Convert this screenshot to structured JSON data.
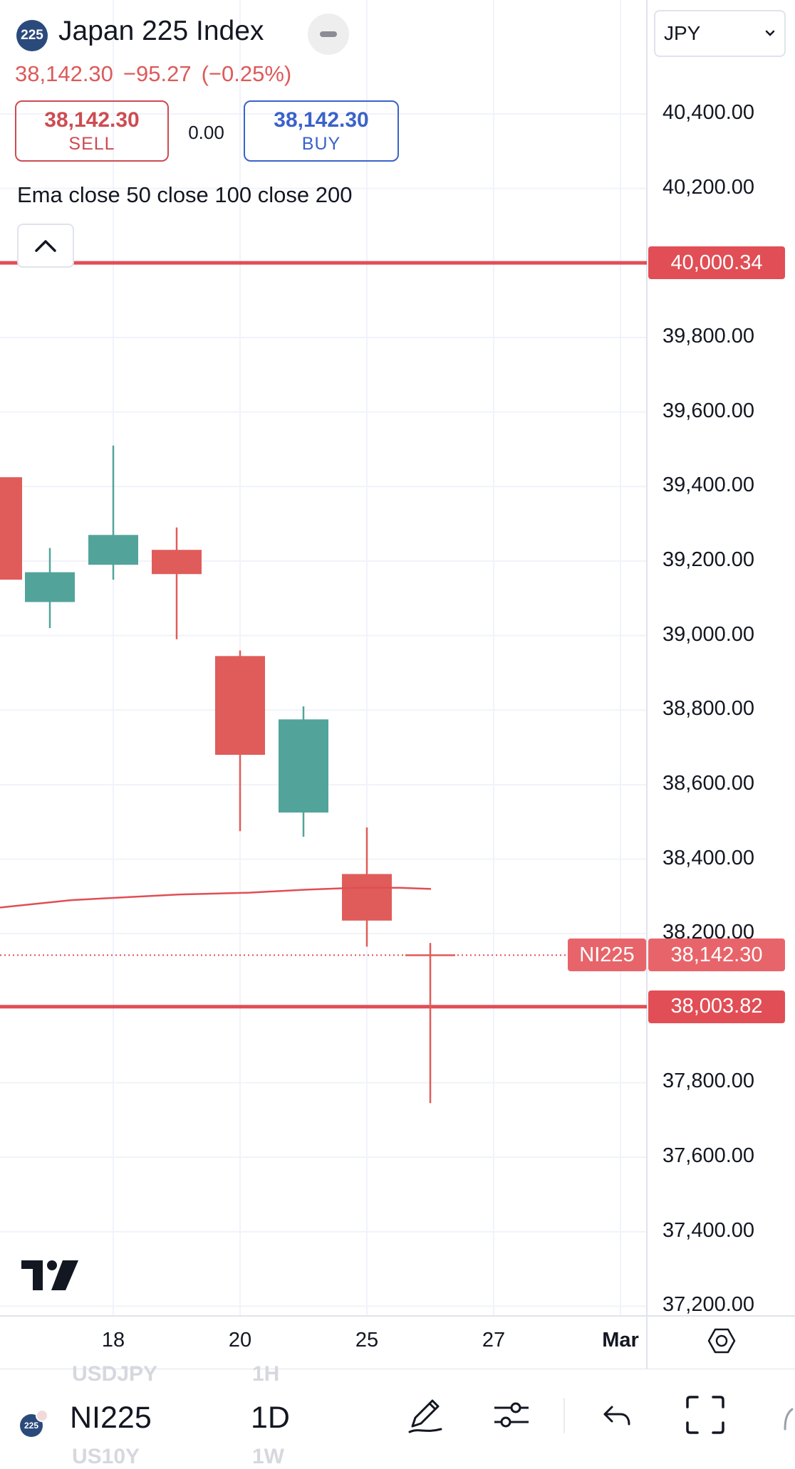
{
  "header": {
    "symbol_badge": "225",
    "title": "Japan 225 Index",
    "last_price": "38,142.30",
    "change": "−95.27",
    "change_percent": "(−0.25%)"
  },
  "trade": {
    "sell_price": "38,142.30",
    "sell_label": "SELL",
    "spread": "0.00",
    "buy_price": "38,142.30",
    "buy_label": "BUY"
  },
  "indicators_label": "Ema close 50 close 100 close 200",
  "currency": {
    "selected": "JPY"
  },
  "chart_data": {
    "type": "candlestick",
    "ylim": [
      37150,
      40690
    ],
    "y_ticks": [
      "40,400.00",
      "40,200.00",
      "39,800.00",
      "39,600.00",
      "39,400.00",
      "39,200.00",
      "39,000.00",
      "38,800.00",
      "38,600.00",
      "38,400.00",
      "38,200.00",
      "37,800.00",
      "37,600.00",
      "37,400.00",
      "37,200.00"
    ],
    "x_ticks": [
      "18",
      "20",
      "25",
      "27",
      "Mar"
    ],
    "candles": [
      {
        "open": 39425,
        "close": 39150,
        "high": 39425,
        "low": 39150,
        "dir": "down"
      },
      {
        "open": 39090,
        "close": 39170,
        "high": 39235,
        "low": 39020,
        "dir": "up"
      },
      {
        "open": 39190,
        "close": 39270,
        "high": 39510,
        "low": 39150,
        "dir": "up"
      },
      {
        "open": 39230,
        "close": 39165,
        "high": 39290,
        "low": 38990,
        "dir": "down"
      },
      {
        "open": 38945,
        "close": 38680,
        "high": 38960,
        "low": 38475,
        "dir": "down"
      },
      {
        "open": 38525,
        "close": 38775,
        "high": 38810,
        "low": 38460,
        "dir": "up"
      },
      {
        "open": 38360,
        "close": 38235,
        "high": 38485,
        "low": 38165,
        "dir": "down"
      },
      {
        "open": 38142,
        "close": 38142,
        "high": 38175,
        "low": 37745,
        "dir": "down"
      }
    ],
    "ema_line": [
      38270,
      38290,
      38305,
      38310,
      38318,
      38323,
      38323,
      38320
    ],
    "price_lines": [
      {
        "value": 40000.34,
        "label": "40,000.34"
      },
      {
        "value": 38003.82,
        "label": "38,003.82"
      }
    ],
    "current_price": {
      "value": 38142.3,
      "label": "38,142.30",
      "symbol": "NI225"
    },
    "colors": {
      "up": "#52a49a",
      "down": "#e05c5a",
      "line": "#e14e55",
      "grid": "#f0f3fa"
    },
    "grid": true
  },
  "toolbar": {
    "symbol": "NI225",
    "symbol_badge": "225",
    "interval": "1D",
    "ghost_symbol_top": "USDJPY",
    "ghost_interval_top": "1H",
    "ghost_symbol_bottom": "US10Y",
    "ghost_interval_bottom": "1W",
    "icons": [
      "pen-icon",
      "settings-sliders-icon",
      "undo-icon",
      "fullscreen-icon"
    ]
  }
}
